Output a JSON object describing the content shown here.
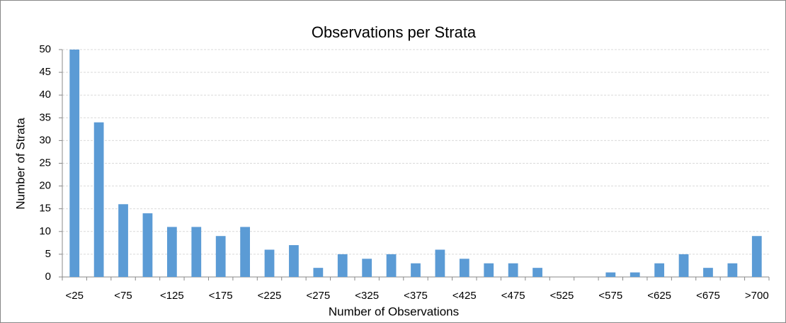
{
  "chart_data": {
    "type": "bar",
    "title": "Observations per Strata",
    "x_label": "Number of Observations",
    "y_label": "Number of Strata",
    "categories": [
      "<25",
      null,
      "<75",
      null,
      "<125",
      null,
      "<175",
      null,
      "<225",
      null,
      "<275",
      null,
      "<325",
      null,
      "<375",
      null,
      "<425",
      null,
      "<475",
      null,
      "<525",
      null,
      "<575",
      null,
      "<625",
      null,
      "<675",
      null,
      ">700"
    ],
    "values": [
      50,
      34,
      16,
      14,
      11,
      11,
      9,
      11,
      6,
      7,
      2,
      5,
      4,
      5,
      3,
      6,
      4,
      3,
      3,
      2,
      0,
      0,
      1,
      1,
      3,
      5,
      2,
      3,
      9
    ],
    "color": "#5b9bd5",
    "ylim": [
      0,
      50
    ],
    "yticks": [
      0,
      5,
      10,
      15,
      20,
      25,
      30,
      35,
      40,
      45,
      50
    ],
    "grid": true
  }
}
